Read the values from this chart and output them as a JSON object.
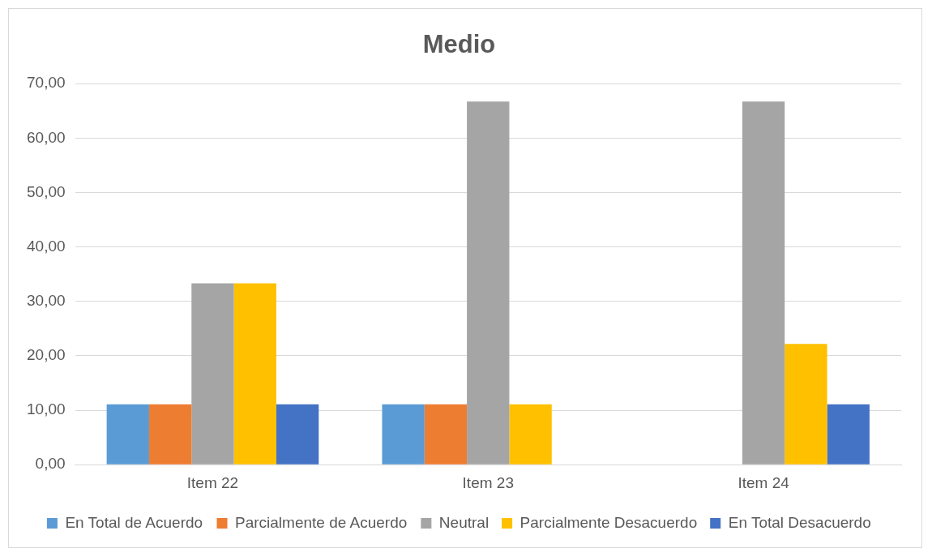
{
  "chart_data": {
    "type": "bar",
    "title": "Medio",
    "categories": [
      "Item 22",
      "Item 23",
      "Item 24"
    ],
    "series": [
      {
        "name": "En Total de Acuerdo",
        "color": "#5b9bd5",
        "values": [
          11.1,
          11.1,
          0
        ]
      },
      {
        "name": "Parcialmente de Acuerdo",
        "color": "#ed7d31",
        "values": [
          11.1,
          11.1,
          0
        ]
      },
      {
        "name": "Neutral",
        "color": "#a5a5a5",
        "values": [
          33.3,
          66.7,
          66.7
        ]
      },
      {
        "name": "Parcialmente Desacuerdo",
        "color": "#ffc000",
        "values": [
          33.3,
          11.1,
          22.2
        ]
      },
      {
        "name": "En Total Desacuerdo",
        "color": "#4472c4",
        "values": [
          11.1,
          0,
          11.1
        ]
      }
    ],
    "ylim": [
      0,
      70
    ],
    "yticks": [
      {
        "value": 0,
        "label": "0,00"
      },
      {
        "value": 10,
        "label": "10,00"
      },
      {
        "value": 20,
        "label": "20,00"
      },
      {
        "value": 30,
        "label": "30,00"
      },
      {
        "value": 40,
        "label": "40,00"
      },
      {
        "value": 50,
        "label": "50,00"
      },
      {
        "value": 60,
        "label": "60,00"
      },
      {
        "value": 70,
        "label": "70,00"
      }
    ],
    "grid": "y",
    "legend": "bottom"
  }
}
